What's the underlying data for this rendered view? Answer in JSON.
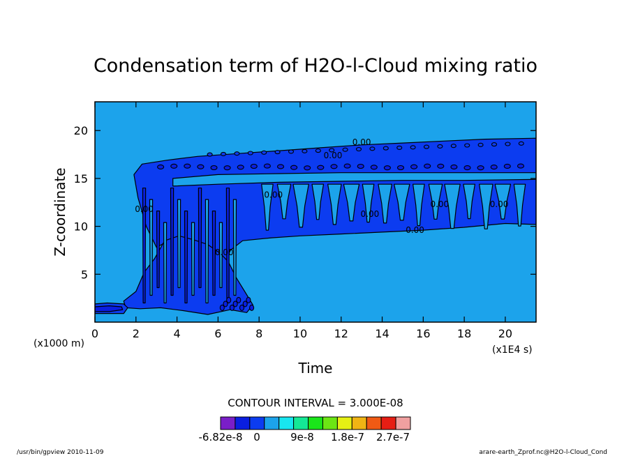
{
  "chart_data": {
    "type": "heatmap",
    "title": "Condensation term of H2O-l-Cloud mixing ratio",
    "xlabel": "Time",
    "ylabel": "Z-coordinate",
    "x_unit": "(x1E4 s)",
    "y_unit": "(x1000 m)",
    "xlim": [
      0,
      21.5
    ],
    "ylim": [
      0,
      23
    ],
    "x_ticks": [
      0,
      2,
      4,
      6,
      8,
      10,
      12,
      14,
      16,
      18,
      20
    ],
    "y_ticks": [
      5,
      10,
      15,
      20
    ],
    "background_color": "#1ca3eb",
    "field_color": "#0c3cf0",
    "contour_labels": [
      {
        "text": "0.00",
        "x": 13,
        "y": 18.5
      },
      {
        "text": "0.00",
        "x": 11.6,
        "y": 17.1
      },
      {
        "text": "0.00",
        "x": 2.4,
        "y": 11.5
      },
      {
        "text": "0.00",
        "x": 6.3,
        "y": 7
      },
      {
        "text": "0.00",
        "x": 8.7,
        "y": 13
      },
      {
        "text": "0.00",
        "x": 13.4,
        "y": 11
      },
      {
        "text": "0.00",
        "x": 15.6,
        "y": 9.3
      },
      {
        "text": "0.00",
        "x": 16.8,
        "y": 12
      },
      {
        "text": "0.00",
        "x": 19.7,
        "y": 12
      }
    ],
    "contour_interval_text": "CONTOUR INTERVAL = 3.000E-08",
    "colorbar": {
      "colors": [
        "#7a1ec8",
        "#0a1ee0",
        "#0c3cf0",
        "#1ca3eb",
        "#18e6f0",
        "#14e896",
        "#1ae61a",
        "#6ce614",
        "#e6f014",
        "#f0b414",
        "#f05a14",
        "#e61e14",
        "#f0a0a0"
      ],
      "labels": [
        "-6.82e-8",
        "0",
        "9e-8",
        "1.8e-7",
        "2.7e-7"
      ]
    }
  },
  "footer": {
    "left": "/usr/bin/gpview  2010-11-09",
    "right": "arare-earth_Zprof.nc@H2O-l-Cloud_Cond"
  }
}
